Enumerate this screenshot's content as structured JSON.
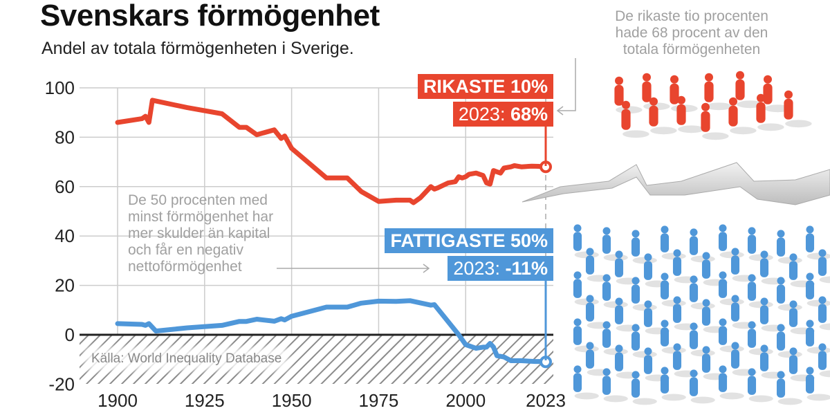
{
  "title": "Svenskars förmögenhet",
  "subtitle": "Andel av totala förmögenheten i Sverige.",
  "source": "Källa: World Inequality Database",
  "annotations": {
    "rich": [
      "De rikaste tio procenten",
      "hade 68 procent av den",
      "totala förmögenheten"
    ],
    "poor": [
      "De 50 procenten med",
      "minst förmögenhet har",
      "mer skulder än kapital",
      "och får en negativ",
      "nettoförmögenhet"
    ]
  },
  "labels": {
    "rich_name": "RIKASTE 10%",
    "rich_year": "2023: ",
    "rich_value": "68%",
    "poor_name": "FATTIGASTE 50%",
    "poor_year": "2023: ",
    "poor_value": "-11%"
  },
  "colors": {
    "rich": "#e8452e",
    "poor": "#4f97d9",
    "zero_line": "#222222",
    "grid": "#cccccc"
  },
  "chart_data": {
    "type": "line",
    "title": "Svenskars förmögenhet",
    "subtitle": "Andel av totala förmögenheten i Sverige.",
    "xlim": [
      1900,
      2023
    ],
    "ylim": [
      -20,
      100
    ],
    "x_ticks": [
      "1900",
      "1925",
      "1950",
      "1975",
      "2000",
      "2023"
    ],
    "y_ticks": [
      "100",
      "80",
      "60",
      "40",
      "20",
      "0",
      "-20"
    ],
    "grid": true,
    "negative_region_hatched": true,
    "series": [
      {
        "name": "RIKASTE 10%",
        "color": "#e8452e",
        "points": [
          [
            1900,
            86
          ],
          [
            1907,
            87.5
          ],
          [
            1908,
            88.5
          ],
          [
            1909,
            86
          ],
          [
            1910,
            95
          ],
          [
            1920,
            92
          ],
          [
            1930,
            89.5
          ],
          [
            1935,
            84
          ],
          [
            1937,
            84
          ],
          [
            1940,
            81
          ],
          [
            1945,
            83
          ],
          [
            1947,
            79.5
          ],
          [
            1948,
            80.5
          ],
          [
            1950,
            75.5
          ],
          [
            1960,
            63.5
          ],
          [
            1966,
            63.5
          ],
          [
            1970,
            58
          ],
          [
            1975,
            54
          ],
          [
            1980,
            54.5
          ],
          [
            1984,
            54.5
          ],
          [
            1985,
            53.5
          ],
          [
            1987,
            55.5
          ],
          [
            1990,
            60
          ],
          [
            1991,
            59
          ],
          [
            1992,
            59.5
          ],
          [
            1995,
            61.5
          ],
          [
            1997,
            62
          ],
          [
            1998,
            64
          ],
          [
            1999,
            63.5
          ],
          [
            2000,
            64
          ],
          [
            2001,
            65
          ],
          [
            2003,
            65.5
          ],
          [
            2005,
            64.5
          ],
          [
            2006,
            61.5
          ],
          [
            2007,
            61
          ],
          [
            2008,
            66.5
          ],
          [
            2009,
            66
          ],
          [
            2010,
            65.5
          ],
          [
            2011,
            67.5
          ],
          [
            2013,
            68
          ],
          [
            2014,
            68.5
          ],
          [
            2016,
            68
          ],
          [
            2019,
            68.3
          ],
          [
            2021,
            68.2
          ],
          [
            2022,
            68
          ],
          [
            2023,
            68
          ]
        ]
      },
      {
        "name": "FATTIGASTE 50%",
        "color": "#4f97d9",
        "points": [
          [
            1900,
            4.5
          ],
          [
            1907,
            4.2
          ],
          [
            1908,
            3.8
          ],
          [
            1909,
            4.5
          ],
          [
            1911,
            1.5
          ],
          [
            1920,
            2.8
          ],
          [
            1930,
            3.8
          ],
          [
            1935,
            5.4
          ],
          [
            1937,
            5.4
          ],
          [
            1940,
            6.3
          ],
          [
            1945,
            5.5
          ],
          [
            1947,
            6.5
          ],
          [
            1948,
            6
          ],
          [
            1950,
            7.5
          ],
          [
            1960,
            11.2
          ],
          [
            1966,
            11.2
          ],
          [
            1970,
            12.8
          ],
          [
            1975,
            13.6
          ],
          [
            1980,
            13.5
          ],
          [
            1984,
            13.8
          ],
          [
            1990,
            12
          ],
          [
            1991,
            12.2
          ],
          [
            1998,
            0
          ],
          [
            2000,
            -4
          ],
          [
            2001,
            -4.5
          ],
          [
            2003,
            -5.5
          ],
          [
            2005,
            -5
          ],
          [
            2006,
            -5
          ],
          [
            2007,
            -3.5
          ],
          [
            2008,
            -5
          ],
          [
            2009,
            -8.5
          ],
          [
            2011,
            -9
          ],
          [
            2013,
            -10.5
          ],
          [
            2016,
            -10.5
          ],
          [
            2020,
            -10.8
          ],
          [
            2022,
            -10.8
          ],
          [
            2023,
            -11
          ]
        ]
      }
    ]
  }
}
